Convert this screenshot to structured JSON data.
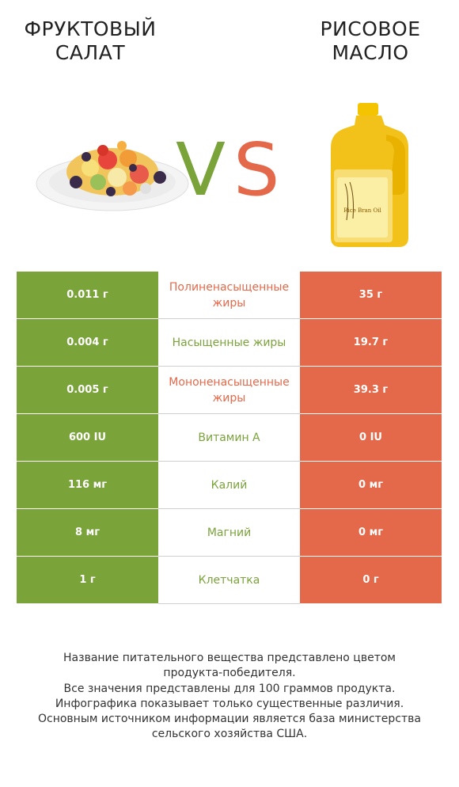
{
  "header": {
    "left_title": "ФРУКТОВЫЙ\nСАЛАТ",
    "right_title": "РИСОВОЕ\nМАСЛО",
    "vs_v": "V",
    "vs_s": "S"
  },
  "colors": {
    "left": "#7aa33a",
    "right": "#e4694a",
    "left_label": "#7aa33a",
    "right_label": "#e4694a"
  },
  "images": {
    "left": "fruit-salad-plate",
    "right": "rice-bran-oil-bottle",
    "bottle_label": "Rice Bran Oil"
  },
  "chart_data": {
    "type": "table",
    "columns": [
      "Фруктовый салат",
      "Рисовое масло"
    ],
    "rows": [
      {
        "nutrient": "Полиненасыщенные жиры",
        "left": "0.011 г",
        "right": "35 г",
        "winner": "right"
      },
      {
        "nutrient": "Насыщенные жиры",
        "left": "0.004 г",
        "right": "19.7 г",
        "winner": "left"
      },
      {
        "nutrient": "Мононенасыщенные жиры",
        "left": "0.005 г",
        "right": "39.3 г",
        "winner": "right"
      },
      {
        "nutrient": "Витамин A",
        "left": "600 IU",
        "right": "0 IU",
        "winner": "left"
      },
      {
        "nutrient": "Калий",
        "left": "116 мг",
        "right": "0 мг",
        "winner": "left"
      },
      {
        "nutrient": "Магний",
        "left": "8 мг",
        "right": "0 мг",
        "winner": "left"
      },
      {
        "nutrient": "Клетчатка",
        "left": "1 г",
        "right": "0 г",
        "winner": "left"
      }
    ]
  },
  "footnote": {
    "line1": "Название питательного вещества представлено цветом",
    "line2": "продукта-победителя.",
    "line3": "Все значения представлены для 100 граммов продукта.",
    "line4": "Инфографика показывает только существенные различия.",
    "line5": "Основным источником информации является база министерства",
    "line6": "сельского хозяйства США."
  }
}
